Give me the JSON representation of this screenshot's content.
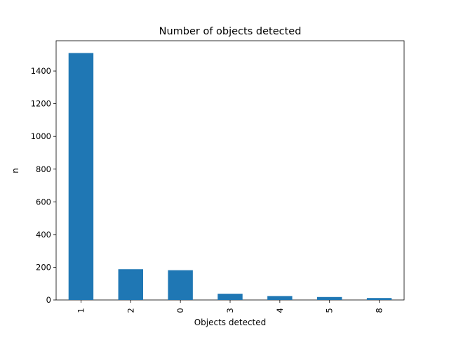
{
  "chart_data": {
    "type": "bar",
    "title": "Number of objects detected",
    "xlabel": "Objects detected",
    "ylabel": "n",
    "categories": [
      "1",
      "2",
      "0",
      "3",
      "4",
      "5",
      "8"
    ],
    "values": [
      1510,
      188,
      182,
      38,
      24,
      18,
      12
    ],
    "ylim": [
      0,
      1585
    ],
    "yticks": [
      0,
      200,
      400,
      600,
      800,
      1000,
      1200,
      1400
    ],
    "bar_color": "#1f77b4",
    "grid": false,
    "legend": "none"
  }
}
